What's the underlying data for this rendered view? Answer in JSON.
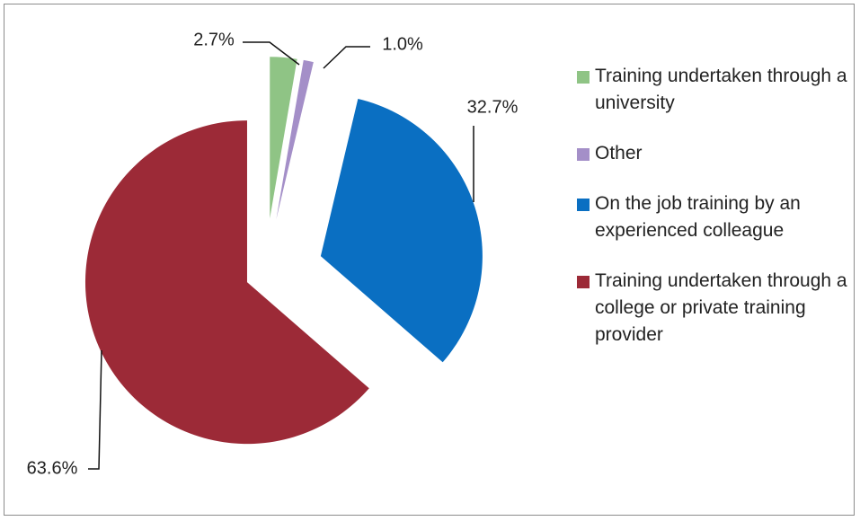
{
  "chart_data": {
    "type": "pie",
    "categories": [
      "Training undertaken through a university",
      "Other",
      "On the job training by an experienced colleague",
      "Training undertaken through a college or private training provider"
    ],
    "values": [
      2.7,
      1.0,
      32.7,
      63.6
    ],
    "value_labels": [
      "2.7%",
      "1.0%",
      "32.7%",
      "63.6%"
    ],
    "colors": [
      "#8fc485",
      "#a48fc8",
      "#0a6fc2",
      "#9c2a37"
    ],
    "legend": "right"
  }
}
